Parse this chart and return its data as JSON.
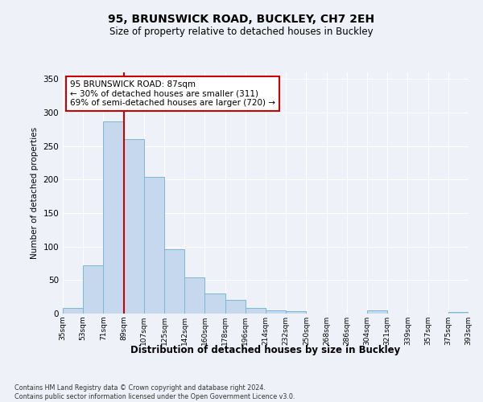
{
  "title": "95, BRUNSWICK ROAD, BUCKLEY, CH7 2EH",
  "subtitle": "Size of property relative to detached houses in Buckley",
  "xlabel": "Distribution of detached houses by size in Buckley",
  "ylabel": "Number of detached properties",
  "bar_values": [
    8,
    72,
    287,
    260,
    204,
    96,
    54,
    30,
    20,
    8,
    5,
    4,
    0,
    0,
    0,
    5,
    0,
    0,
    0,
    3
  ],
  "bin_labels": [
    "35sqm",
    "53sqm",
    "71sqm",
    "89sqm",
    "107sqm",
    "125sqm",
    "142sqm",
    "160sqm",
    "178sqm",
    "196sqm",
    "214sqm",
    "232sqm",
    "250sqm",
    "268sqm",
    "286sqm",
    "304sqm",
    "321sqm",
    "339sqm",
    "357sqm",
    "375sqm",
    "393sqm"
  ],
  "bar_color": "#c5d8ed",
  "bar_edge_color": "#7ab8d4",
  "vline_x_index": 3,
  "vline_color": "#cc0000",
  "ylim_max": 360,
  "yticks": [
    0,
    50,
    100,
    150,
    200,
    250,
    300,
    350
  ],
  "annotation_title": "95 BRUNSWICK ROAD: 87sqm",
  "annotation_line1": "← 30% of detached houses are smaller (311)",
  "annotation_line2": "69% of semi-detached houses are larger (720) →",
  "annotation_box_facecolor": "#ffffff",
  "annotation_box_edgecolor": "#cc0000",
  "footer_line1": "Contains HM Land Registry data © Crown copyright and database right 2024.",
  "footer_line2": "Contains public sector information licensed under the Open Government Licence v3.0.",
  "bg_color": "#eef2f8",
  "title_fontsize": 10,
  "subtitle_fontsize": 8.5
}
